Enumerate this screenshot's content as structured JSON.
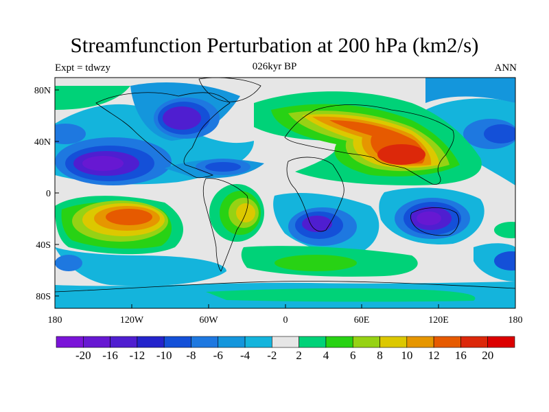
{
  "title": "Streamfunction Perturbation at 200 hPa (km2/s)",
  "subtitle_left": "Expt = tdwzy",
  "subtitle_center": "026kyr BP",
  "subtitle_right": "ANN",
  "x_ticks": [
    "180",
    "120W",
    "60W",
    "0",
    "60E",
    "120E",
    "180"
  ],
  "y_ticks": [
    "80N",
    "40N",
    "0",
    "40S",
    "80S"
  ],
  "colorbar": {
    "labels": [
      "-20",
      "-16",
      "-12",
      "-10",
      "-8",
      "-6",
      "-4",
      "-2",
      "2",
      "4",
      "6",
      "8",
      "10",
      "12",
      "16",
      "20"
    ],
    "colors": [
      "#7a14d8",
      "#6718d2",
      "#4f1ed0",
      "#2424cc",
      "#1450d8",
      "#1e78e0",
      "#1496dc",
      "#14b4dc",
      "#e6e6e6",
      "#00d278",
      "#28d214",
      "#96d214",
      "#dcc800",
      "#e69600",
      "#e65a00",
      "#dc280a",
      "#dc0000"
    ]
  }
}
